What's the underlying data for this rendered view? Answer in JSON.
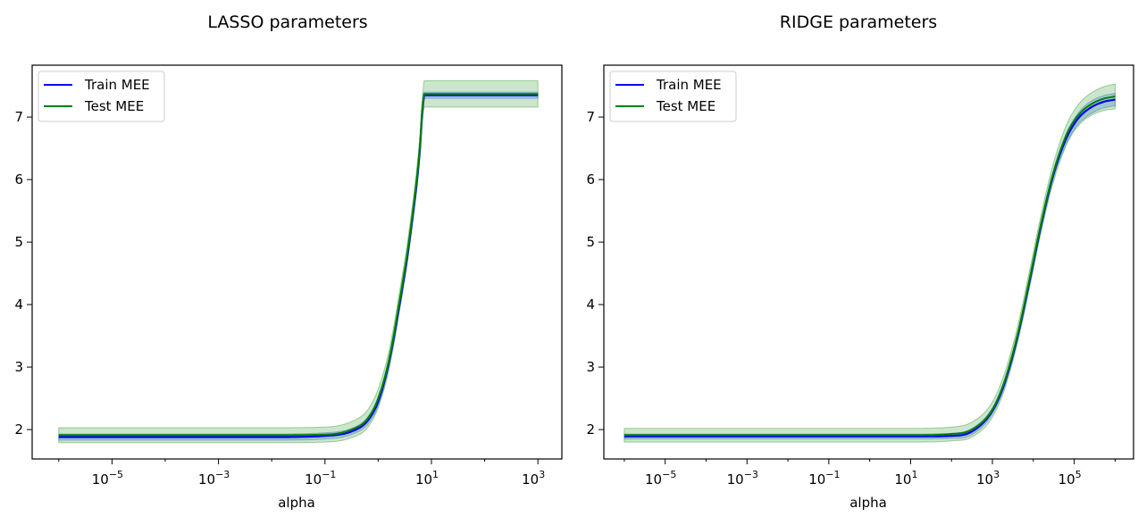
{
  "chart_data": [
    {
      "type": "line",
      "title": "LASSO parameters",
      "xlabel": "alpha",
      "ylabel": "",
      "xscale": "log",
      "xlim_log10": [
        -6.5,
        3.45
      ],
      "ylim": [
        1.53,
        7.83
      ],
      "xtick_exponents": [
        "−5",
        "−3",
        "−1",
        "1",
        "3"
      ],
      "yticks": [
        "2",
        "3",
        "4",
        "5",
        "6",
        "7"
      ],
      "legend": "top-left",
      "grid": false,
      "log10_alpha": [
        -6,
        -4,
        -2,
        -1,
        -0.5,
        -0.2,
        0,
        0.2,
        0.4,
        0.6,
        0.8,
        0.85,
        1,
        2,
        3
      ],
      "series": [
        {
          "name": "Train MEE",
          "color": "#0000ff",
          "values": [
            1.88,
            1.88,
            1.88,
            1.9,
            1.97,
            2.14,
            2.45,
            3.07,
            4.0,
            5.1,
            6.65,
            7.35,
            7.35,
            7.35,
            7.35
          ],
          "band": [
            0.05,
            0.05,
            0.05,
            0.05,
            0.05,
            0.06,
            0.07,
            0.08,
            0.09,
            0.09,
            0.06,
            0.05,
            0.05,
            0.05,
            0.05
          ]
        },
        {
          "name": "Test MEE",
          "color": "#008000",
          "values": [
            1.91,
            1.91,
            1.91,
            1.92,
            2.0,
            2.17,
            2.5,
            3.1,
            4.05,
            5.15,
            6.7,
            7.37,
            7.37,
            7.37,
            7.37
          ],
          "band": [
            0.12,
            0.12,
            0.12,
            0.12,
            0.13,
            0.14,
            0.15,
            0.15,
            0.15,
            0.16,
            0.18,
            0.21,
            0.21,
            0.21,
            0.21
          ]
        }
      ]
    },
    {
      "type": "line",
      "title": "RIDGE parameters",
      "xlabel": "alpha",
      "ylabel": "",
      "xscale": "log",
      "xlim_log10": [
        -6.5,
        6.45
      ],
      "ylim": [
        1.53,
        7.83
      ],
      "xtick_exponents": [
        "−5",
        "−3",
        "−1",
        "1",
        "3",
        "5"
      ],
      "yticks": [
        "2",
        "3",
        "4",
        "5",
        "6",
        "7"
      ],
      "legend": "top-left",
      "grid": false,
      "log10_alpha": [
        -6,
        -2,
        1,
        2,
        2.5,
        3,
        3.3,
        3.6,
        3.9,
        4.2,
        4.5,
        4.8,
        5.1,
        5.4,
        5.7,
        6
      ],
      "series": [
        {
          "name": "Train MEE",
          "color": "#0000ff",
          "values": [
            1.89,
            1.89,
            1.89,
            1.9,
            1.97,
            2.3,
            2.75,
            3.45,
            4.35,
            5.3,
            6.1,
            6.65,
            6.98,
            7.15,
            7.24,
            7.28
          ],
          "band": [
            0.04,
            0.04,
            0.04,
            0.04,
            0.05,
            0.05,
            0.06,
            0.06,
            0.07,
            0.07,
            0.07,
            0.08,
            0.09,
            0.1,
            0.1,
            0.1
          ]
        },
        {
          "name": "Test MEE",
          "color": "#008000",
          "values": [
            1.91,
            1.91,
            1.91,
            1.93,
            2.0,
            2.32,
            2.78,
            3.48,
            4.38,
            5.33,
            6.13,
            6.7,
            7.03,
            7.2,
            7.29,
            7.33
          ],
          "band": [
            0.11,
            0.11,
            0.11,
            0.11,
            0.12,
            0.12,
            0.13,
            0.13,
            0.14,
            0.14,
            0.15,
            0.16,
            0.17,
            0.18,
            0.19,
            0.2
          ]
        }
      ]
    }
  ]
}
